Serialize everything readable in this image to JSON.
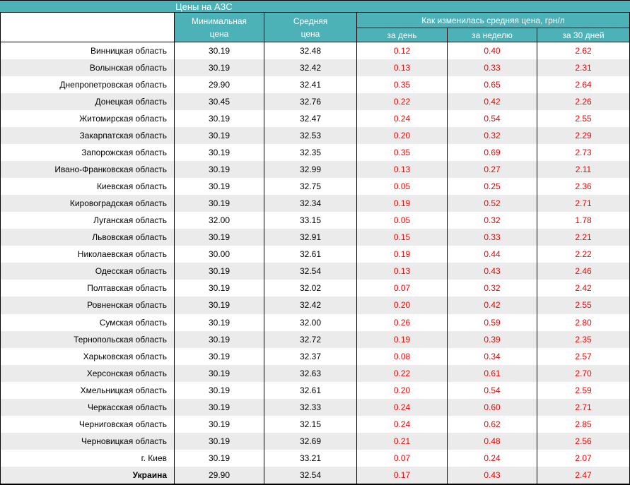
{
  "colors": {
    "teal": "#4DB1B8",
    "row_alt": "#EBEBEB",
    "change_text": "#FF0000",
    "text": "#000000"
  },
  "chart_data": {
    "type": "table",
    "title": "Цены на АЗС",
    "header": {
      "region": "",
      "min_price": "Минимальная\nцена",
      "avg_price": "Средняя\nцена",
      "change_group": "Как изменилась средняя цена, грн/л",
      "change_day": "за день",
      "change_week": "за неделю",
      "change_month": "за 30 дней"
    },
    "rows": [
      [
        "Винницкая область",
        "30.19",
        "32.48",
        "0.12",
        "0.40",
        "2.62"
      ],
      [
        "Волынская область",
        "30.19",
        "32.42",
        "0.13",
        "0.33",
        "2.31"
      ],
      [
        "Днепропетровская область",
        "29.90",
        "32.41",
        "0.35",
        "0.65",
        "2.64"
      ],
      [
        "Донецкая область",
        "30.45",
        "32.76",
        "0.22",
        "0.42",
        "2.26"
      ],
      [
        "Житомирская область",
        "30.19",
        "32.47",
        "0.24",
        "0.54",
        "2.55"
      ],
      [
        "Закарпатская область",
        "30.19",
        "32.53",
        "0.20",
        "0.32",
        "2.29"
      ],
      [
        "Запорожская область",
        "30.19",
        "32.35",
        "0.35",
        "0.69",
        "2.73"
      ],
      [
        "Ивано-Франковская область",
        "30.19",
        "32.99",
        "0.13",
        "0.27",
        "2.11"
      ],
      [
        "Киевская область",
        "30.19",
        "32.75",
        "0.05",
        "0.25",
        "2.36"
      ],
      [
        "Кировоградская область",
        "30.19",
        "32.34",
        "0.19",
        "0.52",
        "2.71"
      ],
      [
        "Луганская область",
        "32.00",
        "33.15",
        "0.05",
        "0.32",
        "1.78"
      ],
      [
        "Львовская область",
        "30.19",
        "32.91",
        "0.15",
        "0.33",
        "2.21"
      ],
      [
        "Николаевская область",
        "30.00",
        "32.61",
        "0.19",
        "0.44",
        "2.22"
      ],
      [
        "Одесская область",
        "30.19",
        "32.54",
        "0.13",
        "0.43",
        "2.46"
      ],
      [
        "Полтавская область",
        "30.19",
        "32.02",
        "0.07",
        "0.32",
        "2.42"
      ],
      [
        "Ровненская область",
        "30.19",
        "32.42",
        "0.20",
        "0.42",
        "2.55"
      ],
      [
        "Сумская область",
        "30.19",
        "32.00",
        "0.26",
        "0.59",
        "2.80"
      ],
      [
        "Тернопольская область",
        "30.19",
        "32.72",
        "0.19",
        "0.39",
        "2.35"
      ],
      [
        "Харьковская область",
        "30.19",
        "32.37",
        "0.08",
        "0.34",
        "2.57"
      ],
      [
        "Херсонская область",
        "30.19",
        "32.63",
        "0.22",
        "0.61",
        "2.70"
      ],
      [
        "Хмельницкая область",
        "30.19",
        "32.61",
        "0.20",
        "0.54",
        "2.59"
      ],
      [
        "Черкасская область",
        "30.19",
        "32.33",
        "0.24",
        "0.60",
        "2.71"
      ],
      [
        "Черниговская область",
        "30.19",
        "32.15",
        "0.24",
        "0.62",
        "2.85"
      ],
      [
        "Черновицкая область",
        "30.19",
        "32.69",
        "0.21",
        "0.48",
        "2.56"
      ],
      [
        "г. Киев",
        "30.19",
        "33.21",
        "0.07",
        "0.24",
        "2.07"
      ]
    ],
    "total_row": [
      "Украина",
      "29.90",
      "32.54",
      "0.17",
      "0.43",
      "2.47"
    ]
  }
}
